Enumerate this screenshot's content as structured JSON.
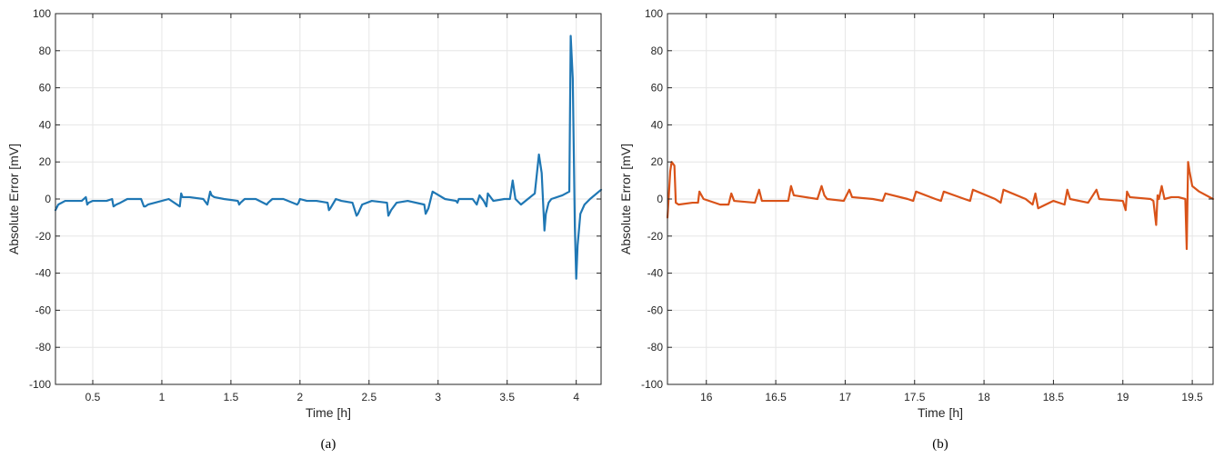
{
  "chart_data": [
    {
      "type": "line",
      "caption": "(a)",
      "xlabel": "Time  [h]",
      "ylabel": "Absolute Error  [mV]",
      "xlim": [
        0.23,
        4.18
      ],
      "ylim": [
        -100,
        100
      ],
      "xticks": [
        0.5,
        1,
        1.5,
        2,
        2.5,
        3,
        3.5,
        4
      ],
      "xtick_labels": [
        "0.5",
        "1",
        "1.5",
        "2",
        "2.5",
        "3",
        "3.5",
        "4"
      ],
      "yticks": [
        -100,
        -80,
        -60,
        -40,
        -20,
        0,
        20,
        40,
        60,
        80,
        100
      ],
      "ytick_labels": [
        "-100",
        "-80",
        "-60",
        "-40",
        "-20",
        "0",
        "20",
        "40",
        "60",
        "80",
        "100"
      ],
      "grid": true,
      "series": [
        {
          "color": "#1f77b4",
          "x": [
            0.23,
            0.25,
            0.3,
            0.42,
            0.45,
            0.46,
            0.47,
            0.5,
            0.6,
            0.64,
            0.65,
            0.67,
            0.7,
            0.75,
            0.85,
            0.87,
            0.88,
            0.9,
            0.95,
            1.05,
            1.13,
            1.14,
            1.15,
            1.2,
            1.3,
            1.33,
            1.35,
            1.36,
            1.38,
            1.45,
            1.55,
            1.56,
            1.57,
            1.6,
            1.68,
            1.76,
            1.77,
            1.8,
            1.88,
            1.98,
            1.99,
            2.0,
            2.05,
            2.12,
            2.2,
            2.21,
            2.22,
            2.26,
            2.3,
            2.38,
            2.41,
            2.42,
            2.45,
            2.52,
            2.63,
            2.64,
            2.66,
            2.7,
            2.78,
            2.9,
            2.91,
            2.93,
            2.96,
            3.05,
            3.13,
            3.14,
            3.15,
            3.2,
            3.25,
            3.28,
            3.3,
            3.33,
            3.35,
            3.36,
            3.4,
            3.48,
            3.52,
            3.54,
            3.56,
            3.6,
            3.7,
            3.73,
            3.75,
            3.77,
            3.78,
            3.8,
            3.82,
            3.9,
            3.95,
            3.96,
            3.975,
            3.99,
            4.0,
            4.01,
            4.03,
            4.06,
            4.1,
            4.18
          ],
          "y": [
            -6,
            -3,
            -1,
            -1,
            1,
            -3,
            -2,
            -1,
            -1,
            0,
            -4,
            -3,
            -2,
            0,
            0,
            -4,
            -4,
            -3,
            -2,
            0,
            -4,
            3,
            1,
            1,
            0,
            -3,
            4,
            2,
            1,
            0,
            -1,
            -3,
            -2,
            0,
            0,
            -3,
            -2,
            0,
            0,
            -3,
            -2,
            0,
            -1,
            -1,
            -2,
            -6,
            -5,
            0,
            -1,
            -2,
            -9,
            -8,
            -3,
            -1,
            -2,
            -9,
            -6,
            -2,
            -1,
            -3,
            -8,
            -5,
            4,
            0,
            -1,
            -2,
            0,
            0,
            0,
            -3,
            2,
            -1,
            -4,
            3,
            -1,
            0,
            0,
            10,
            0,
            -3,
            3,
            24,
            14,
            -17,
            -8,
            -2,
            0,
            2,
            4,
            88,
            65,
            -15,
            -43,
            -25,
            -8,
            -3,
            0,
            5
          ]
        }
      ]
    },
    {
      "type": "line",
      "caption": "(b)",
      "xlabel": "Time  [h]",
      "ylabel": "Absolute Error  [mV]",
      "xlim": [
        15.72,
        19.65
      ],
      "ylim": [
        -100,
        100
      ],
      "xticks": [
        16,
        16.5,
        17,
        17.5,
        18,
        18.5,
        19,
        19.5
      ],
      "xtick_labels": [
        "16",
        "16.5",
        "17",
        "17.5",
        "18",
        "18.5",
        "19",
        "19.5"
      ],
      "yticks": [
        -100,
        -80,
        -60,
        -40,
        -20,
        0,
        20,
        40,
        60,
        80,
        100
      ],
      "ytick_labels": [
        "-100",
        "-80",
        "-60",
        "-40",
        "-20",
        "0",
        "20",
        "40",
        "60",
        "80",
        "100"
      ],
      "grid": true,
      "series": [
        {
          "color": "#d95319",
          "x": [
            15.72,
            15.74,
            15.75,
            15.77,
            15.78,
            15.8,
            15.9,
            15.94,
            15.95,
            15.98,
            16.1,
            16.16,
            16.18,
            16.2,
            16.35,
            16.38,
            16.4,
            16.55,
            16.59,
            16.61,
            16.63,
            16.8,
            16.83,
            16.85,
            16.87,
            16.99,
            17.03,
            17.05,
            17.2,
            17.27,
            17.29,
            17.45,
            17.49,
            17.51,
            17.65,
            17.69,
            17.71,
            17.86,
            17.9,
            17.92,
            18.08,
            18.12,
            18.14,
            18.3,
            18.35,
            18.37,
            18.39,
            18.5,
            18.58,
            18.6,
            18.62,
            18.75,
            18.81,
            18.83,
            19.0,
            19.02,
            19.03,
            19.05,
            19.2,
            19.22,
            19.24,
            19.25,
            19.26,
            19.28,
            19.3,
            19.35,
            19.4,
            19.45,
            19.46,
            19.47,
            19.48,
            19.5,
            19.55,
            19.65
          ],
          "y": [
            -10,
            15,
            20,
            18,
            -2,
            -3,
            -2,
            -2,
            4,
            0,
            -3,
            -3,
            3,
            -1,
            -2,
            5,
            -1,
            -1,
            -1,
            7,
            2,
            0,
            7,
            2,
            0,
            -1,
            5,
            1,
            0,
            -1,
            3,
            0,
            -1,
            4,
            0,
            -1,
            4,
            0,
            -1,
            5,
            0,
            -2,
            5,
            0,
            -3,
            3,
            -5,
            -1,
            -3,
            5,
            0,
            -2,
            5,
            0,
            -1,
            -6,
            4,
            1,
            0,
            -1,
            -14,
            2,
            0,
            7,
            0,
            1,
            1,
            0,
            -27,
            20,
            15,
            7,
            4,
            0
          ]
        }
      ]
    }
  ]
}
